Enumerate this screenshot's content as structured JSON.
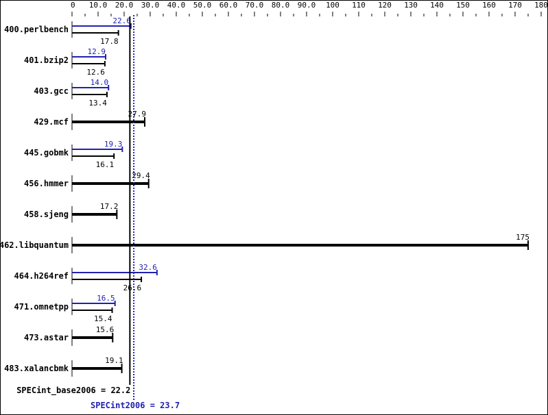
{
  "chart_data": {
    "type": "bar",
    "orientation": "horizontal",
    "xlim": [
      0,
      180
    ],
    "x_ticks": [
      "0",
      "10.0",
      "20.0",
      "30.0",
      "40.0",
      "50.0",
      "60.0",
      "70.0",
      "80.0",
      "90.0",
      "100",
      "110",
      "120",
      "130",
      "140",
      "150",
      "160",
      "170",
      "180"
    ],
    "categories": [
      "400.perlbench",
      "401.bzip2",
      "403.gcc",
      "429.mcf",
      "445.gobmk",
      "456.hmmer",
      "458.sjeng",
      "462.libquantum",
      "464.h264ref",
      "471.omnetpp",
      "473.astar",
      "483.xalancbmk"
    ],
    "series": [
      {
        "name": "SPECint2006",
        "color": "#2020b0",
        "values": [
          22.6,
          12.9,
          14.0,
          null,
          19.3,
          null,
          null,
          null,
          32.6,
          16.5,
          null,
          null
        ]
      },
      {
        "name": "SPECint_base2006",
        "color": "#000000",
        "values": [
          17.8,
          12.6,
          13.4,
          27.9,
          16.1,
          29.4,
          17.2,
          175,
          26.6,
          15.4,
          15.6,
          19.1
        ]
      }
    ],
    "value_labels_base": [
      "17.8",
      "12.6",
      "13.4",
      "27.9",
      "16.1",
      "29.4",
      "17.2",
      "175",
      "26.6",
      "15.4",
      "15.6",
      "19.1"
    ],
    "value_labels_peak": [
      "22.6",
      "12.9",
      "14.0",
      "",
      "19.3",
      "",
      "",
      "",
      "32.6",
      "16.5",
      "",
      ""
    ],
    "reference_lines": [
      {
        "label": "SPECint_base2006 = 22.2",
        "value": 22.2,
        "color": "#000000",
        "style": "solid"
      },
      {
        "label": "SPECint2006 = 23.7",
        "value": 23.7,
        "color": "#2020b0",
        "style": "dotted"
      }
    ],
    "grid": false
  }
}
